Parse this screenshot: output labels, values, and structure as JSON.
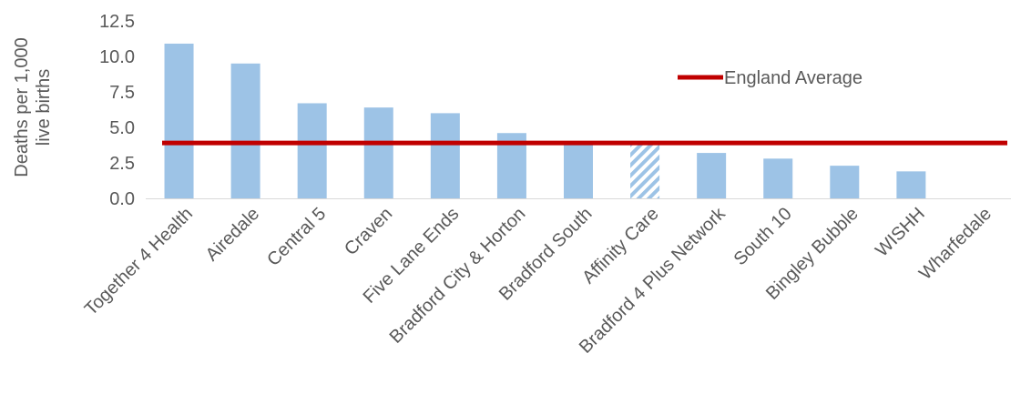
{
  "chart_data": {
    "type": "bar",
    "title": "",
    "xlabel": "",
    "ylabel_lines": [
      "Deaths per 1,000",
      "live births"
    ],
    "ylim": [
      0,
      12.5
    ],
    "yticks": [
      "0.0",
      "2.5",
      "5.0",
      "7.5",
      "10.0",
      "12.5"
    ],
    "categories": [
      "Together 4 Health",
      "Airedale",
      "Central 5",
      "Craven",
      "Five Lane Ends",
      "Bradford City & Horton",
      "Bradford South",
      "Affinity Care",
      "Bradford 4 Plus Network",
      "South 10",
      "Bingley Bubble",
      "WISHH",
      "Wharfedale"
    ],
    "values": [
      10.9,
      9.5,
      6.7,
      6.4,
      6.0,
      4.6,
      3.9,
      3.8,
      3.2,
      2.8,
      2.3,
      1.9,
      0
    ],
    "hatched": [
      false,
      false,
      false,
      false,
      false,
      false,
      false,
      true,
      false,
      false,
      false,
      false,
      false
    ],
    "reference_line": {
      "name": "England Average",
      "value": 3.9
    },
    "legend_position": "top-right",
    "grid": false,
    "colors": {
      "bar": "#9dc3e6",
      "reference": "#c00000",
      "text": "#595959",
      "axis": "#d9d9d9"
    }
  }
}
